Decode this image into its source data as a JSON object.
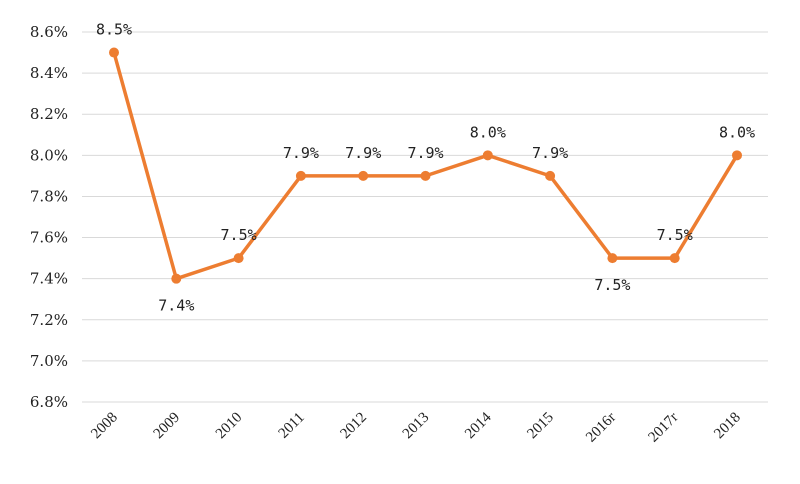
{
  "chart_data": {
    "type": "line",
    "title": "",
    "xlabel": "",
    "ylabel": "",
    "categories": [
      "2008",
      "2009",
      "2010",
      "2011",
      "2012",
      "2013",
      "2014",
      "2015",
      "2016r",
      "2017r",
      "2018"
    ],
    "series": [
      {
        "values": [
          8.5,
          7.4,
          7.5,
          7.9,
          7.9,
          7.9,
          8.0,
          7.9,
          7.5,
          7.5,
          8.0
        ],
        "color": "#ed7d31"
      }
    ],
    "data_labels": [
      "8.5%",
      "7.4%",
      "7.5%",
      "7.9%",
      "7.9%",
      "7.9%",
      "8.0%",
      "7.9%",
      "7.5%",
      "7.5%",
      "8.0%"
    ],
    "y_tick_labels": [
      "6.8%",
      "7.0%",
      "7.2%",
      "7.4%",
      "7.6%",
      "7.8%",
      "8.0%",
      "8.2%",
      "8.4%",
      "8.6%"
    ],
    "y_tick_values": [
      6.8,
      7.0,
      7.2,
      7.4,
      7.6,
      7.8,
      8.0,
      8.2,
      8.4,
      8.6
    ],
    "ylim": [
      6.8,
      8.6
    ],
    "grid": true,
    "legend": "none",
    "marker": "circle"
  }
}
